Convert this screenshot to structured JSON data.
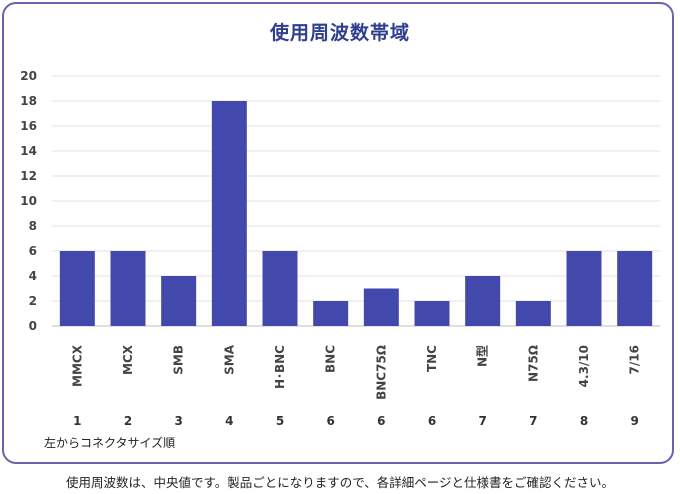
{
  "chart_data": {
    "type": "bar",
    "title": "使用周波数帯域",
    "categories": [
      "MMCX",
      "MCX",
      "SMB",
      "SMA",
      "H･BNC",
      "BNC",
      "BNC75Ω",
      "TNC",
      "N型",
      "N75Ω",
      "4.3/10",
      "7/16"
    ],
    "order_labels": [
      "1",
      "2",
      "3",
      "4",
      "5",
      "6",
      "6",
      "6",
      "7",
      "7",
      "8",
      "9"
    ],
    "values": [
      6,
      6,
      4,
      18,
      6,
      2,
      3,
      2,
      4,
      2,
      6,
      6
    ],
    "yticks": [
      0,
      2,
      4,
      6,
      8,
      10,
      12,
      14,
      16,
      18,
      20
    ],
    "ylim": [
      0,
      20
    ],
    "grid": true,
    "bar_color": "#4349ac",
    "sort_note": "左からコネクタサイズ順"
  },
  "footnote": "使用周波数は、中央値です。製品ごとになりますので、各詳細ページと仕様書をご確認ください。"
}
